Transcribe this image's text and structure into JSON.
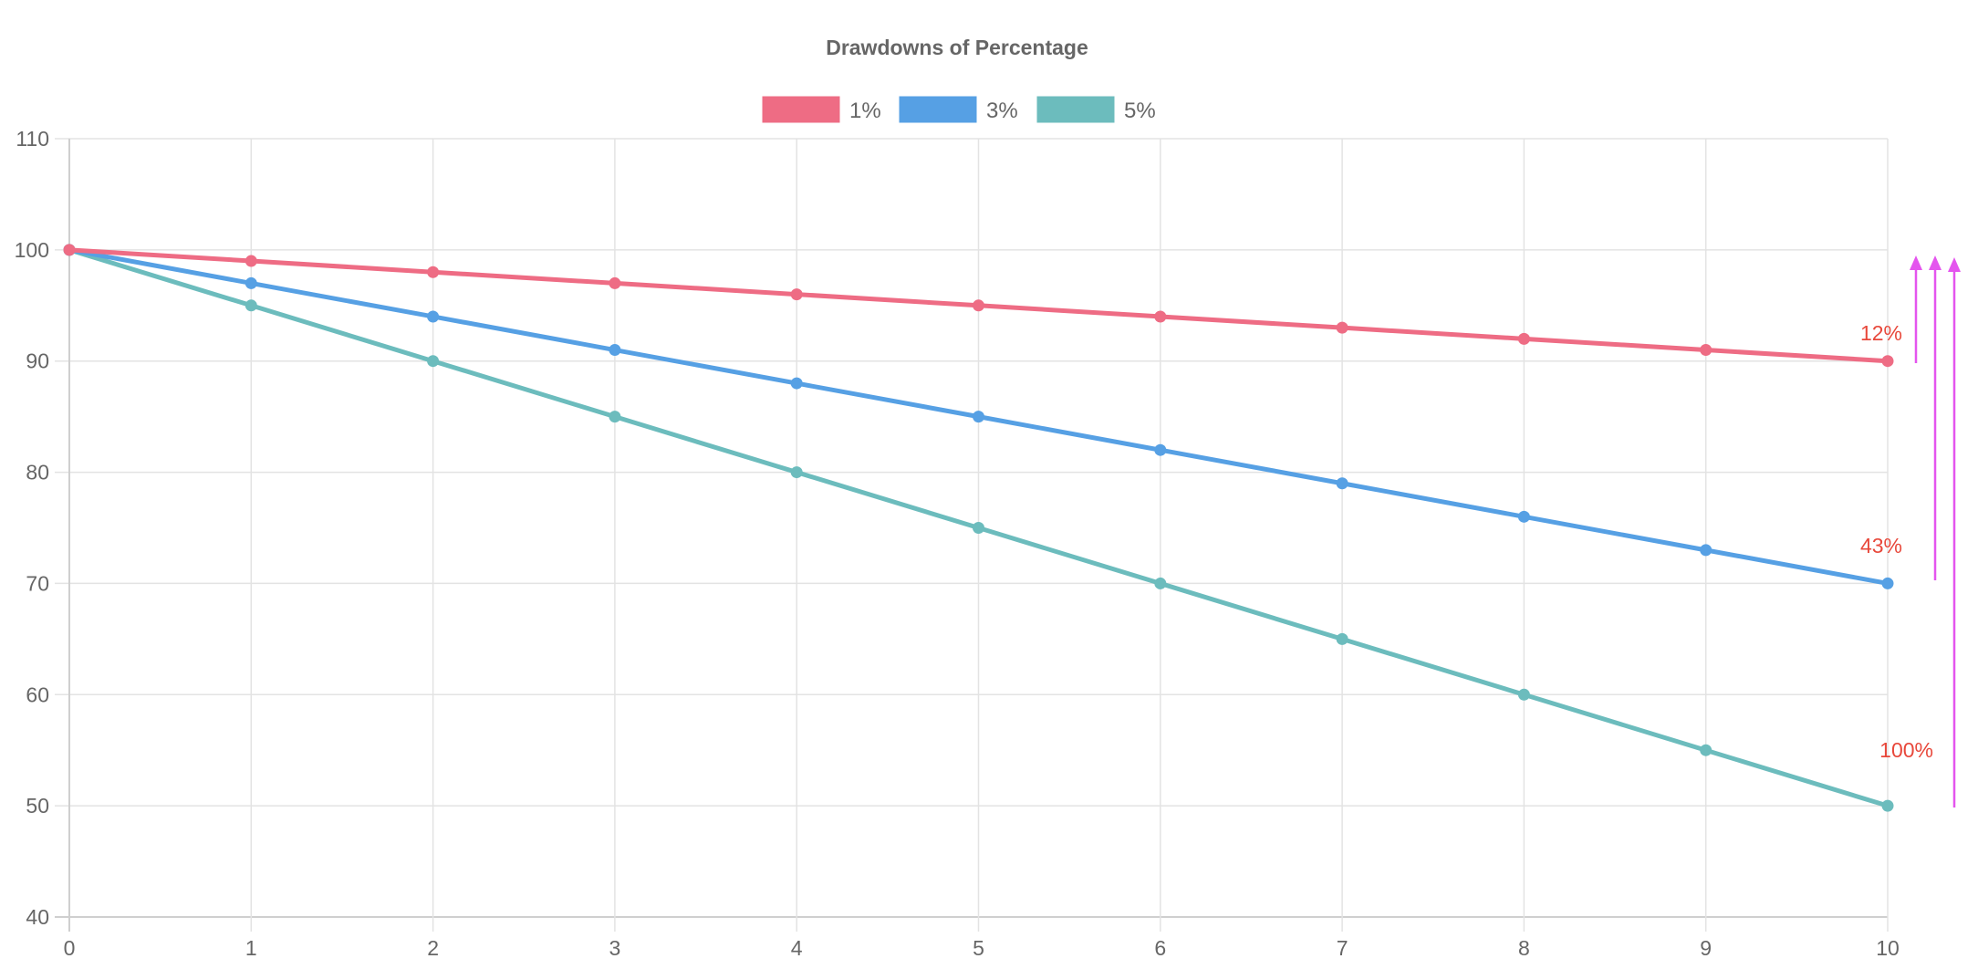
{
  "chart_data": {
    "type": "line",
    "title": "Drawdowns of Percentage",
    "xlabel": "",
    "ylabel": "",
    "x": [
      0,
      1,
      2,
      3,
      4,
      5,
      6,
      7,
      8,
      9,
      10
    ],
    "xlim": [
      0,
      10
    ],
    "ylim": [
      40,
      110
    ],
    "yticks": [
      40,
      50,
      60,
      70,
      80,
      90,
      100,
      110
    ],
    "xticks": [
      0,
      1,
      2,
      3,
      4,
      5,
      6,
      7,
      8,
      9,
      10
    ],
    "grid": true,
    "legend_position": "top",
    "series": [
      {
        "name": "1%",
        "color": "#ee6c84",
        "values": [
          100,
          99,
          98,
          97,
          96,
          95,
          94,
          93,
          92,
          91,
          90
        ]
      },
      {
        "name": "3%",
        "color": "#56a0e4",
        "values": [
          100,
          97,
          94,
          91,
          88,
          85,
          82,
          79,
          76,
          73,
          70
        ]
      },
      {
        "name": "5%",
        "color": "#6cbcbd",
        "values": [
          100,
          95,
          90,
          85,
          80,
          75,
          70,
          65,
          60,
          55,
          50
        ]
      }
    ],
    "annotations": [
      {
        "text": "12%",
        "series": "1%",
        "color": "#e8483b",
        "arrow_color": "#e455ee"
      },
      {
        "text": "43%",
        "series": "3%",
        "color": "#e8483b",
        "arrow_color": "#e455ee"
      },
      {
        "text": "100%",
        "series": "5%",
        "color": "#e8483b",
        "arrow_color": "#e455ee"
      }
    ]
  }
}
